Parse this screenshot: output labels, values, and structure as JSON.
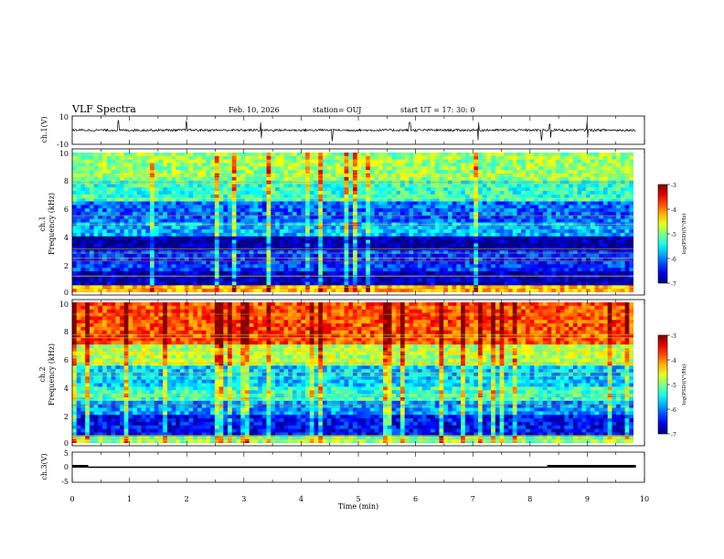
{
  "header": {
    "title": "VLF Spectra",
    "date": "Feb. 10, 2026",
    "station": "station= OUJ",
    "start": "start  UT  =   17: 30: 0"
  },
  "chart_data": [
    {
      "type": "line",
      "name": "ch1-waveform",
      "ylabel": "ch.1(V)",
      "ylim": [
        -10,
        10
      ],
      "yticks": [
        "10",
        "-10"
      ],
      "xlim": [
        0,
        10
      ],
      "approx_level": 0,
      "grid": false
    },
    {
      "type": "heatmap",
      "name": "ch1-spectrogram",
      "ylabel": "ch.1\nFrequency  (kHz)",
      "ylabel_lines": [
        "ch.1",
        "Frequency  (kHz)"
      ],
      "ylim": [
        0,
        10
      ],
      "yticks": [
        "0",
        "2",
        "4",
        "6",
        "8",
        "10"
      ],
      "xlim": [
        0,
        9.85
      ],
      "bands": [
        {
          "from": 0.0,
          "to": 0.5,
          "level": -4.2
        },
        {
          "from": 0.5,
          "to": 1.5,
          "level": -6.8
        },
        {
          "from": 1.5,
          "to": 3.0,
          "level": -6.3
        },
        {
          "from": 3.0,
          "to": 4.0,
          "level": -6.9
        },
        {
          "from": 4.0,
          "to": 5.0,
          "level": -5.8
        },
        {
          "from": 5.0,
          "to": 6.5,
          "level": -6.1
        },
        {
          "from": 6.5,
          "to": 8.0,
          "level": -5.3
        },
        {
          "from": 8.0,
          "to": 10.0,
          "level": -4.9
        }
      ],
      "colorbar": {
        "label": "log(PSD)(V²/Hz)",
        "min": -7,
        "max": -3,
        "ticks": [
          "-3",
          "-4",
          "-5",
          "-6",
          "-7"
        ]
      },
      "grid": false
    },
    {
      "type": "heatmap",
      "name": "ch2-spectrogram",
      "ylabel": "ch.2\nFrequency  (kHz)",
      "ylabel_lines": [
        "ch.2",
        "Frequency  (kHz)"
      ],
      "ylim": [
        0,
        10
      ],
      "yticks": [
        "0",
        "2",
        "4",
        "6",
        "8",
        "10"
      ],
      "xlim": [
        0,
        9.85
      ],
      "bands": [
        {
          "from": 0.0,
          "to": 0.6,
          "level": -5.0
        },
        {
          "from": 0.6,
          "to": 2.0,
          "level": -6.5
        },
        {
          "from": 2.0,
          "to": 3.0,
          "level": -5.9
        },
        {
          "from": 3.0,
          "to": 4.0,
          "level": -5.3
        },
        {
          "from": 4.0,
          "to": 5.5,
          "level": -5.7
        },
        {
          "from": 5.5,
          "to": 7.0,
          "level": -4.8
        },
        {
          "from": 7.0,
          "to": 10.0,
          "level": -3.8
        }
      ],
      "colorbar": {
        "label": "log(PSD)(V²/Hz)",
        "min": -7,
        "max": -3,
        "ticks": [
          "-3",
          "-4",
          "-5",
          "-6",
          "-7"
        ]
      },
      "grid": false
    },
    {
      "type": "line",
      "name": "ch3-signal",
      "ylabel": "ch.3(V)",
      "ylim": [
        -5,
        5
      ],
      "yticks": [
        "5",
        "0",
        "-5"
      ],
      "xlim": [
        0,
        10
      ],
      "xticks": [
        "0",
        "1",
        "2",
        "3",
        "4",
        "5",
        "6",
        "7",
        "8",
        "9",
        "10"
      ],
      "xlabel": "Time  (min)",
      "approx_level": 0,
      "segments": [
        {
          "x": [
            0,
            0.28
          ],
          "y": 0.3
        },
        {
          "x": [
            0.28,
            8.3
          ],
          "y": 0
        },
        {
          "x": [
            8.3,
            9.85
          ],
          "y": 0.3
        }
      ],
      "grid": false
    }
  ]
}
